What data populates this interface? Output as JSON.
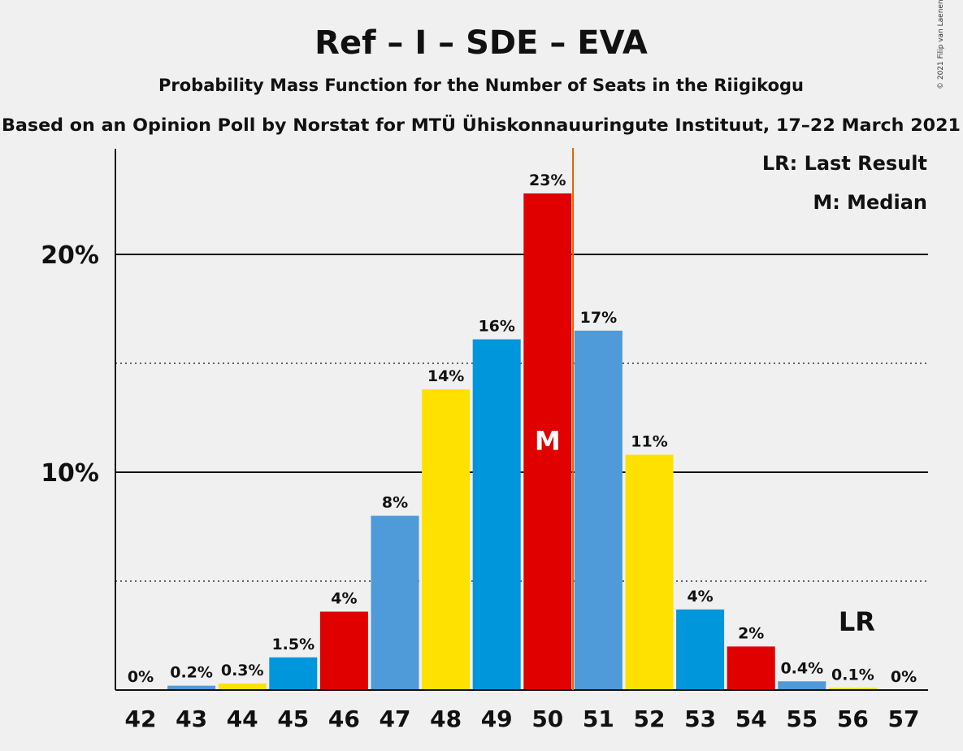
{
  "copyright": "© 2021 Filip van Laenen",
  "chart_data": {
    "type": "bar",
    "title": "Ref – I – SDE – EVA",
    "subtitle": "Probability Mass Function for the Number of Seats in the Riigikogu",
    "subtitle2": "Based on an Opinion Poll by Norstat for MTÜ Ühiskonnauuringute Instituut, 17–22 March 2021",
    "categories": [
      "42",
      "43",
      "44",
      "45",
      "46",
      "47",
      "48",
      "49",
      "50",
      "51",
      "52",
      "53",
      "54",
      "55",
      "56",
      "57"
    ],
    "values": [
      0,
      0.2,
      0.3,
      1.5,
      3.6,
      8.0,
      13.8,
      16.1,
      22.8,
      16.5,
      10.8,
      3.7,
      2.0,
      0.4,
      0.1,
      0
    ],
    "labels": [
      "0%",
      "0.2%",
      "0.3%",
      "1.5%",
      "4%",
      "8%",
      "14%",
      "16%",
      "23%",
      "17%",
      "11%",
      "4%",
      "2%",
      "0.4%",
      "0.1%",
      "0%"
    ],
    "colors": [
      "#0096dc",
      "#4f9ad8",
      "#ffe100",
      "#0096dc",
      "#e00000",
      "#4f9ad8",
      "#ffe100",
      "#0096dc",
      "#e00000",
      "#4f9ad8",
      "#ffe100",
      "#0096dc",
      "#e00000",
      "#4f9ad8",
      "#ffe100",
      "#0096dc"
    ],
    "ylim": [
      0,
      25
    ],
    "yticks": [
      {
        "value": 10,
        "label": "10%"
      },
      {
        "value": 20,
        "label": "20%"
      }
    ],
    "minor_gridlines": [
      5,
      15
    ],
    "median": {
      "category": "50",
      "label": "M"
    },
    "last_result": {
      "category": "56",
      "label": "LR"
    },
    "majority_line_between": [
      "50",
      "51"
    ],
    "majority_line_color": "#e06000",
    "legend": [
      "LR: Last Result",
      "M: Median"
    ]
  }
}
